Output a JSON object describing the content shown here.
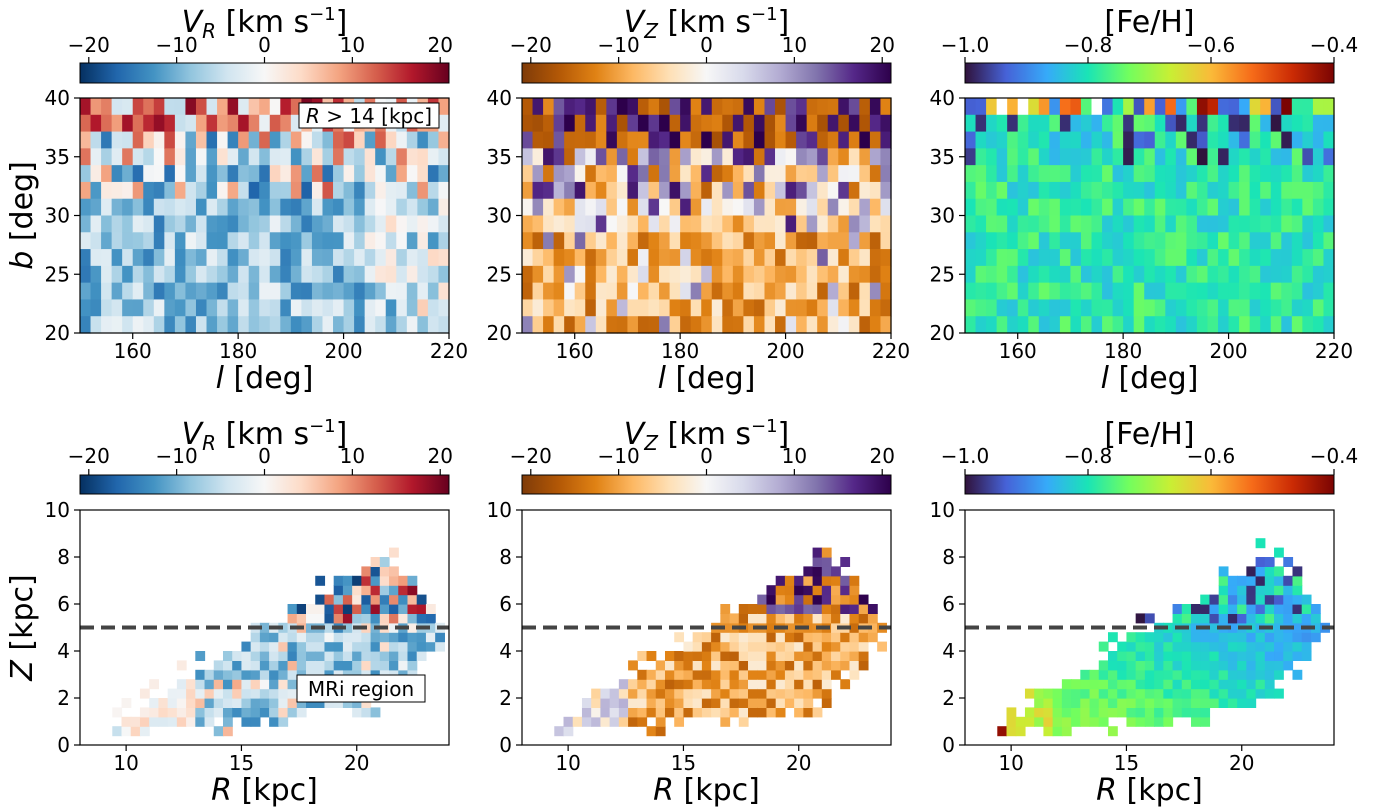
{
  "figure": {
    "colormaps": {
      "vr": [
        "#053061",
        "#2166ac",
        "#4393c3",
        "#92c5de",
        "#d1e5f0",
        "#f7f7f7",
        "#fddbc7",
        "#f4a582",
        "#d6604d",
        "#b2182b",
        "#67001f"
      ],
      "vz": [
        "#7f3b08",
        "#b35806",
        "#e08214",
        "#fdb863",
        "#fee0b6",
        "#f7f7f7",
        "#d8daeb",
        "#b2abd2",
        "#8073ac",
        "#542788",
        "#2d004b"
      ],
      "feh": [
        "#30123b",
        "#4662d7",
        "#36aaf9",
        "#1ae4b6",
        "#72fe5e",
        "#c8ef34",
        "#faba39",
        "#f66b19",
        "#ca2a04",
        "#7a0403"
      ]
    },
    "dashed_line_color": "#444444"
  },
  "chart_data": [
    {
      "type": "heatmap",
      "panel": "top-left",
      "colorbar_label_main": "V",
      "colorbar_label_sub": "R",
      "colorbar_label_unit": " [km s",
      "colorbar_label_exp": "−1",
      "colorbar_label_end": "]",
      "colorbar_ticks": [
        "−20",
        "−10",
        "0",
        "10",
        "20"
      ],
      "colorbar_range": [
        -21,
        21
      ],
      "colormap": "vr",
      "xlabel": "l [deg]",
      "xlabel_sym": "l",
      "xlabel_unit": " [deg]",
      "ylabel": "b [deg]",
      "ylabel_sym": "b",
      "ylabel_unit": " [deg]",
      "xticks": [
        "160",
        "180",
        "200",
        "220"
      ],
      "yticks": [
        "20",
        "25",
        "30",
        "35",
        "40"
      ],
      "xlim": [
        150,
        220
      ],
      "ylim": [
        20,
        40
      ],
      "annotation_sym": "R",
      "annotation_text": " > 14 [kpc]",
      "grid_shape": [
        35,
        14
      ]
    },
    {
      "type": "heatmap",
      "panel": "top-middle",
      "colorbar_label_main": "V",
      "colorbar_label_sub": "Z",
      "colorbar_label_unit": " [km s",
      "colorbar_label_exp": "−1",
      "colorbar_label_end": "]",
      "colorbar_ticks": [
        "−20",
        "−10",
        "0",
        "10",
        "20"
      ],
      "colorbar_range": [
        -21,
        21
      ],
      "colormap": "vz",
      "xlabel": "l [deg]",
      "xlabel_sym": "l",
      "xlabel_unit": " [deg]",
      "xticks": [
        "160",
        "180",
        "200",
        "220"
      ],
      "yticks": [
        "20",
        "25",
        "30",
        "35",
        "40"
      ],
      "xlim": [
        150,
        220
      ],
      "ylim": [
        20,
        40
      ],
      "grid_shape": [
        35,
        14
      ]
    },
    {
      "type": "heatmap",
      "panel": "top-right",
      "colorbar_label_plain": "[Fe/H]",
      "colorbar_ticks": [
        "−1.0",
        "−0.8",
        "−0.6",
        "−0.4"
      ],
      "colorbar_range": [
        -1.0,
        -0.4
      ],
      "colormap": "feh",
      "xlabel": "l [deg]",
      "xlabel_sym": "l",
      "xlabel_unit": " [deg]",
      "xticks": [
        "160",
        "180",
        "200",
        "220"
      ],
      "yticks": [
        "20",
        "25",
        "30",
        "35",
        "40"
      ],
      "xlim": [
        150,
        220
      ],
      "ylim": [
        20,
        40
      ],
      "grid_shape": [
        35,
        14
      ]
    },
    {
      "type": "heatmap",
      "panel": "bottom-left",
      "colorbar_label_main": "V",
      "colorbar_label_sub": "R",
      "colorbar_label_unit": " [km s",
      "colorbar_label_exp": "−1",
      "colorbar_label_end": "]",
      "colorbar_ticks": [
        "−20",
        "−10",
        "0",
        "10",
        "20"
      ],
      "colorbar_range": [
        -21,
        21
      ],
      "colormap": "vr",
      "xlabel": "R [kpc]",
      "xlabel_sym": "R",
      "xlabel_unit": " [kpc]",
      "ylabel": "Z [kpc]",
      "ylabel_sym": "Z",
      "ylabel_unit": " [kpc]",
      "xticks": [
        "10",
        "15",
        "20"
      ],
      "yticks": [
        "0",
        "2",
        "4",
        "6",
        "8",
        "10"
      ],
      "xlim": [
        8,
        24
      ],
      "ylim": [
        0,
        10
      ],
      "hline_y": 5,
      "annotation_plain": "MRi region"
    },
    {
      "type": "heatmap",
      "panel": "bottom-middle",
      "colorbar_label_main": "V",
      "colorbar_label_sub": "Z",
      "colorbar_label_unit": " [km s",
      "colorbar_label_exp": "−1",
      "colorbar_label_end": "]",
      "colorbar_ticks": [
        "−20",
        "−10",
        "0",
        "10",
        "20"
      ],
      "colorbar_range": [
        -21,
        21
      ],
      "colormap": "vz",
      "xlabel": "R [kpc]",
      "xlabel_sym": "R",
      "xlabel_unit": " [kpc]",
      "xticks": [
        "10",
        "15",
        "20"
      ],
      "yticks": [
        "0",
        "2",
        "4",
        "6",
        "8",
        "10"
      ],
      "xlim": [
        8,
        24
      ],
      "ylim": [
        0,
        10
      ],
      "hline_y": 5
    },
    {
      "type": "heatmap",
      "panel": "bottom-right",
      "colorbar_label_plain": "[Fe/H]",
      "colorbar_ticks": [
        "−1.0",
        "−0.8",
        "−0.6",
        "−0.4"
      ],
      "colorbar_range": [
        -1.0,
        -0.4
      ],
      "colormap": "feh",
      "xlabel": "R [kpc]",
      "xlabel_sym": "R",
      "xlabel_unit": " [kpc]",
      "xticks": [
        "10",
        "15",
        "20"
      ],
      "yticks": [
        "0",
        "2",
        "4",
        "6",
        "8",
        "10"
      ],
      "xlim": [
        8,
        24
      ],
      "ylim": [
        0,
        10
      ],
      "hline_y": 5
    }
  ]
}
